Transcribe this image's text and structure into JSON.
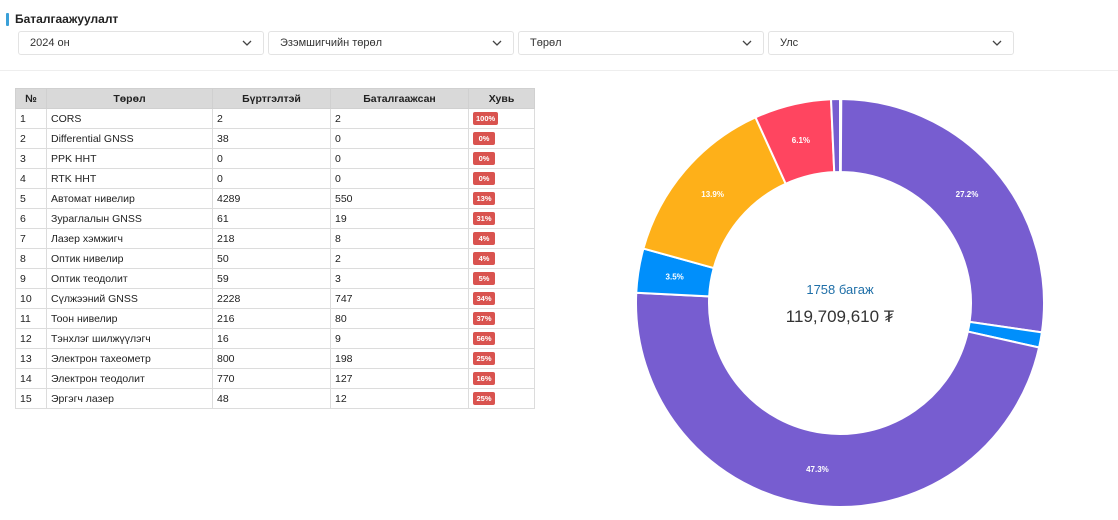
{
  "header": {
    "title": "Баталгаажуулалт"
  },
  "filters": [
    {
      "label": "2024 он"
    },
    {
      "label": "Эзэмшигчийн төрөл"
    },
    {
      "label": "Төрөл"
    },
    {
      "label": "Улс"
    }
  ],
  "table": {
    "columns": [
      "№",
      "Төрөл",
      "Бүртгэлтэй",
      "Баталгаажсан",
      "Хувь"
    ],
    "rows": [
      [
        "1",
        "CORS",
        "2",
        "2",
        "100%"
      ],
      [
        "2",
        "Differential GNSS",
        "38",
        "0",
        "0%"
      ],
      [
        "3",
        "PPK ННТ",
        "0",
        "0",
        "0%"
      ],
      [
        "4",
        "RTK ННТ",
        "0",
        "0",
        "0%"
      ],
      [
        "5",
        "Автомат нивелир",
        "4289",
        "550",
        "13%"
      ],
      [
        "6",
        "Зураглалын GNSS",
        "61",
        "19",
        "31%"
      ],
      [
        "7",
        "Лазер хэмжигч",
        "218",
        "8",
        "4%"
      ],
      [
        "8",
        "Оптик нивелир",
        "50",
        "2",
        "4%"
      ],
      [
        "9",
        "Оптик теодолит",
        "59",
        "3",
        "5%"
      ],
      [
        "10",
        "Сүлжээний GNSS",
        "2228",
        "747",
        "34%"
      ],
      [
        "11",
        "Тоон нивелир",
        "216",
        "80",
        "37%"
      ],
      [
        "12",
        "Тэнхлэг шилжүүлэгч",
        "16",
        "9",
        "56%"
      ],
      [
        "13",
        "Электрон тахеометр",
        "800",
        "198",
        "25%"
      ],
      [
        "14",
        "Электрон теодолит",
        "770",
        "127",
        "16%"
      ],
      [
        "15",
        "Эргэгч лазер",
        "48",
        "12",
        "25%"
      ]
    ]
  },
  "summary": {
    "count_label": "1758 багаж",
    "amount_label": "119,709,610 ₮"
  },
  "chart_data": {
    "type": "pie",
    "style": "donut",
    "slices": [
      {
        "label": "0.1%",
        "value": 0.1,
        "color": "#775dd0",
        "show_label": false
      },
      {
        "label": "27.2%",
        "value": 27.2,
        "color": "#775dd0",
        "show_label": true
      },
      {
        "label": "1.2%",
        "value": 1.2,
        "color": "#008ffb",
        "show_label": false
      },
      {
        "label": "47.3%",
        "value": 47.3,
        "color": "#775dd0",
        "show_label": true
      },
      {
        "label": "3.5%",
        "value": 3.5,
        "color": "#008ffb",
        "show_label": true
      },
      {
        "label": "13.9%",
        "value": 13.9,
        "color": "#feb019",
        "show_label": true
      },
      {
        "label": "6.1%",
        "value": 6.1,
        "color": "#ff4560",
        "show_label": true
      },
      {
        "label": "0.7%",
        "value": 0.7,
        "color": "#775dd0",
        "show_label": false
      }
    ]
  }
}
